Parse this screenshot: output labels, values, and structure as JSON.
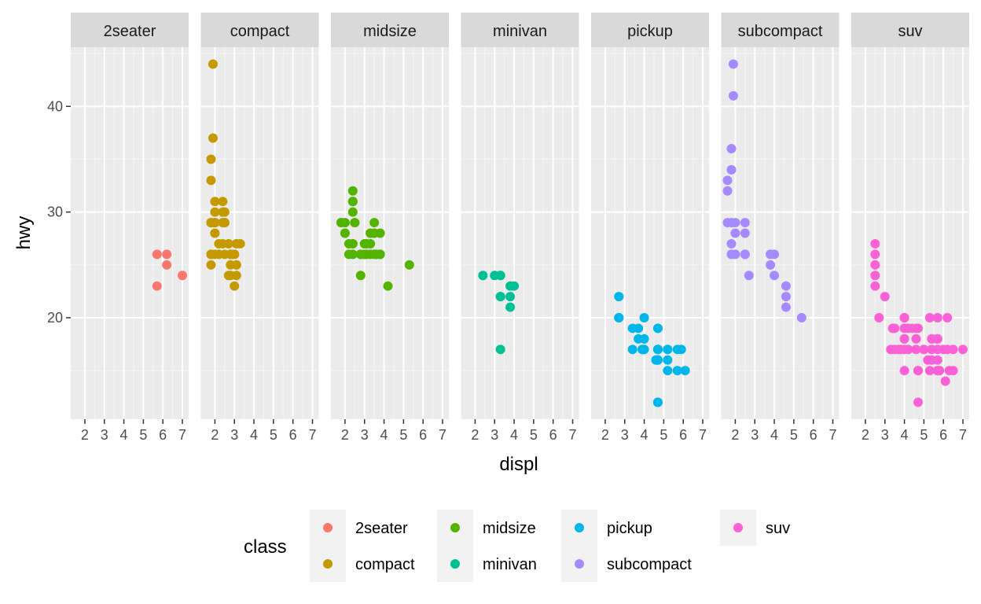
{
  "chart_data": {
    "type": "scatter",
    "xlabel": "displ",
    "ylabel": "hwy",
    "xlim": [
      1.6,
      7.0
    ],
    "ylim": [
      10.4,
      45.6
    ],
    "x_ticks": [
      2,
      3,
      4,
      5,
      6,
      7
    ],
    "y_ticks": [
      20,
      30,
      40
    ],
    "grid": true,
    "legend": {
      "title": "class",
      "placement": "bottom",
      "entries": [
        {
          "label": "2seater",
          "color": "#F8766D"
        },
        {
          "label": "compact",
          "color": "#C49A00"
        },
        {
          "label": "midsize",
          "color": "#53B400"
        },
        {
          "label": "minivan",
          "color": "#00C094"
        },
        {
          "label": "pickup",
          "color": "#00B6EB"
        },
        {
          "label": "subcompact",
          "color": "#A58AFF"
        },
        {
          "label": "suv",
          "color": "#FB61D7"
        }
      ]
    },
    "facets": [
      {
        "name": "2seater",
        "color": "#F8766D",
        "points": [
          [
            5.7,
            26
          ],
          [
            5.7,
            23
          ],
          [
            6.2,
            26
          ],
          [
            6.2,
            25
          ],
          [
            7.0,
            24
          ]
        ]
      },
      {
        "name": "compact",
        "color": "#C49A00",
        "points": [
          [
            1.8,
            29
          ],
          [
            1.8,
            29
          ],
          [
            2.0,
            31
          ],
          [
            2.0,
            30
          ],
          [
            2.8,
            26
          ],
          [
            2.8,
            26
          ],
          [
            3.1,
            27
          ],
          [
            1.8,
            26
          ],
          [
            1.8,
            25
          ],
          [
            2.0,
            28
          ],
          [
            2.0,
            29
          ],
          [
            2.8,
            26
          ],
          [
            2.8,
            25
          ],
          [
            3.1,
            25
          ],
          [
            3.1,
            25
          ],
          [
            2.2,
            26
          ],
          [
            2.2,
            27
          ],
          [
            2.4,
            30
          ],
          [
            2.4,
            29
          ],
          [
            3.0,
            26
          ],
          [
            3.3,
            27
          ],
          [
            1.8,
            29
          ],
          [
            1.8,
            26
          ],
          [
            1.9,
            44
          ],
          [
            1.9,
            37
          ],
          [
            1.8,
            35
          ],
          [
            1.8,
            33
          ],
          [
            2.0,
            29
          ],
          [
            2.0,
            29
          ],
          [
            2.5,
            29
          ],
          [
            2.5,
            30
          ],
          [
            2.4,
            31
          ],
          [
            2.4,
            27
          ],
          [
            2.5,
            26
          ],
          [
            2.5,
            29
          ],
          [
            2.7,
            27
          ],
          [
            2.7,
            24
          ],
          [
            3.0,
            23
          ],
          [
            3.0,
            26
          ],
          [
            2.0,
            26
          ],
          [
            2.0,
            29
          ],
          [
            2.8,
            26
          ],
          [
            2.8,
            24
          ],
          [
            3.1,
            24
          ]
        ]
      },
      {
        "name": "midsize",
        "color": "#53B400",
        "points": [
          [
            2.4,
            27
          ],
          [
            2.4,
            30
          ],
          [
            3.1,
            26
          ],
          [
            3.5,
            29
          ],
          [
            3.6,
            26
          ],
          [
            2.4,
            26
          ],
          [
            3.0,
            27
          ],
          [
            3.3,
            26
          ],
          [
            3.3,
            28
          ],
          [
            3.3,
            28
          ],
          [
            3.3,
            27
          ],
          [
            3.8,
            26
          ],
          [
            3.8,
            26
          ],
          [
            3.8,
            28
          ],
          [
            2.0,
            28
          ],
          [
            2.5,
            29
          ],
          [
            2.5,
            29
          ],
          [
            3.5,
            28
          ],
          [
            2.4,
            31
          ],
          [
            2.4,
            32
          ],
          [
            3.1,
            27
          ],
          [
            3.5,
            26
          ],
          [
            5.3,
            25
          ],
          [
            2.2,
            26
          ],
          [
            2.2,
            27
          ],
          [
            2.4,
            31
          ],
          [
            2.4,
            31
          ],
          [
            3.0,
            26
          ],
          [
            3.0,
            26
          ],
          [
            3.5,
            28
          ],
          [
            1.8,
            29
          ],
          [
            1.8,
            29
          ],
          [
            2.0,
            28
          ],
          [
            2.0,
            29
          ],
          [
            2.8,
            26
          ],
          [
            2.8,
            26
          ],
          [
            3.6,
            26
          ],
          [
            2.8,
            24
          ],
          [
            4.2,
            23
          ],
          [
            2.4,
            27
          ]
        ]
      },
      {
        "name": "minivan",
        "color": "#00C094",
        "points": [
          [
            2.4,
            24
          ],
          [
            3.0,
            24
          ],
          [
            3.3,
            22
          ],
          [
            3.3,
            22
          ],
          [
            3.3,
            24
          ],
          [
            3.3,
            24
          ],
          [
            3.3,
            17
          ],
          [
            3.8,
            22
          ],
          [
            3.8,
            21
          ],
          [
            3.8,
            23
          ],
          [
            4.0,
            23
          ]
        ]
      },
      {
        "name": "pickup",
        "color": "#00B6EB",
        "points": [
          [
            3.7,
            19
          ],
          [
            3.7,
            18
          ],
          [
            3.9,
            17
          ],
          [
            3.9,
            17
          ],
          [
            4.7,
            19
          ],
          [
            4.7,
            19
          ],
          [
            4.7,
            17
          ],
          [
            5.2,
            17
          ],
          [
            5.2,
            17
          ],
          [
            4.7,
            12
          ],
          [
            4.7,
            12
          ],
          [
            5.7,
            17
          ],
          [
            5.9,
            17
          ],
          [
            4.7,
            17
          ],
          [
            4.7,
            12
          ],
          [
            4.7,
            17
          ],
          [
            4.7,
            17
          ],
          [
            4.7,
            16
          ],
          [
            5.2,
            15
          ],
          [
            5.2,
            16
          ],
          [
            2.7,
            20
          ],
          [
            2.7,
            20
          ],
          [
            2.7,
            22
          ],
          [
            3.4,
            17
          ],
          [
            3.4,
            19
          ],
          [
            4.0,
            18
          ],
          [
            4.0,
            20
          ],
          [
            4.7,
            17
          ],
          [
            4.7,
            16
          ],
          [
            5.7,
            15
          ],
          [
            6.1,
            15
          ],
          [
            4.0,
            17
          ],
          [
            4.6,
            16
          ]
        ]
      },
      {
        "name": "subcompact",
        "color": "#A58AFF",
        "points": [
          [
            1.8,
            36
          ],
          [
            1.8,
            34
          ],
          [
            1.6,
            33
          ],
          [
            1.6,
            32
          ],
          [
            1.6,
            29
          ],
          [
            1.8,
            29
          ],
          [
            1.8,
            26
          ],
          [
            1.8,
            27
          ],
          [
            2.0,
            26
          ],
          [
            2.0,
            28
          ],
          [
            2.0,
            29
          ],
          [
            1.9,
            44
          ],
          [
            1.9,
            41
          ],
          [
            2.5,
            28
          ],
          [
            2.5,
            29
          ],
          [
            2.5,
            26
          ],
          [
            2.5,
            26
          ],
          [
            2.7,
            24
          ],
          [
            3.8,
            26
          ],
          [
            3.8,
            25
          ],
          [
            4.0,
            26
          ],
          [
            4.0,
            24
          ],
          [
            4.6,
            21
          ],
          [
            4.6,
            22
          ],
          [
            4.6,
            23
          ],
          [
            5.4,
            20
          ]
        ]
      },
      {
        "name": "suv",
        "color": "#FB61D7",
        "points": [
          [
            5.7,
            20
          ],
          [
            5.7,
            15
          ],
          [
            6.2,
            20
          ],
          [
            6.2,
            17
          ],
          [
            7.0,
            17
          ],
          [
            5.3,
            20
          ],
          [
            5.3,
            15
          ],
          [
            5.7,
            15
          ],
          [
            6.5,
            17
          ],
          [
            4.4,
            19
          ],
          [
            4.0,
            17
          ],
          [
            4.0,
            19
          ],
          [
            4.6,
            17
          ],
          [
            5.0,
            17
          ],
          [
            2.5,
            27
          ],
          [
            2.5,
            25
          ],
          [
            2.5,
            26
          ],
          [
            2.5,
            24
          ],
          [
            2.5,
            23
          ],
          [
            2.7,
            20
          ],
          [
            4.0,
            15
          ],
          [
            4.0,
            18
          ],
          [
            4.6,
            18
          ],
          [
            5.4,
            17
          ],
          [
            4.0,
            20
          ],
          [
            4.6,
            19
          ],
          [
            4.7,
            19
          ],
          [
            5.4,
            18
          ],
          [
            3.7,
            17
          ],
          [
            3.8,
            17
          ],
          [
            4.2,
            19
          ],
          [
            4.7,
            15
          ],
          [
            5.7,
            16
          ],
          [
            5.7,
            18
          ],
          [
            6.1,
            14
          ],
          [
            4.2,
            17
          ],
          [
            4.7,
            12
          ],
          [
            4.7,
            15
          ],
          [
            5.0,
            17
          ],
          [
            5.2,
            16
          ],
          [
            5.4,
            16
          ],
          [
            6.0,
            17
          ],
          [
            3.0,
            22
          ],
          [
            3.3,
            17
          ],
          [
            4.0,
            19
          ],
          [
            4.0,
            20
          ],
          [
            4.7,
            15
          ],
          [
            5.0,
            17
          ],
          [
            5.7,
            18
          ],
          [
            6.5,
            15
          ],
          [
            3.5,
            19
          ],
          [
            3.4,
            19
          ],
          [
            3.5,
            17
          ],
          [
            4.0,
            18
          ],
          [
            5.4,
            18
          ],
          [
            5.4,
            17
          ],
          [
            5.7,
            18
          ],
          [
            5.7,
            17
          ],
          [
            5.8,
            15
          ],
          [
            6.3,
            15
          ]
        ]
      }
    ]
  }
}
